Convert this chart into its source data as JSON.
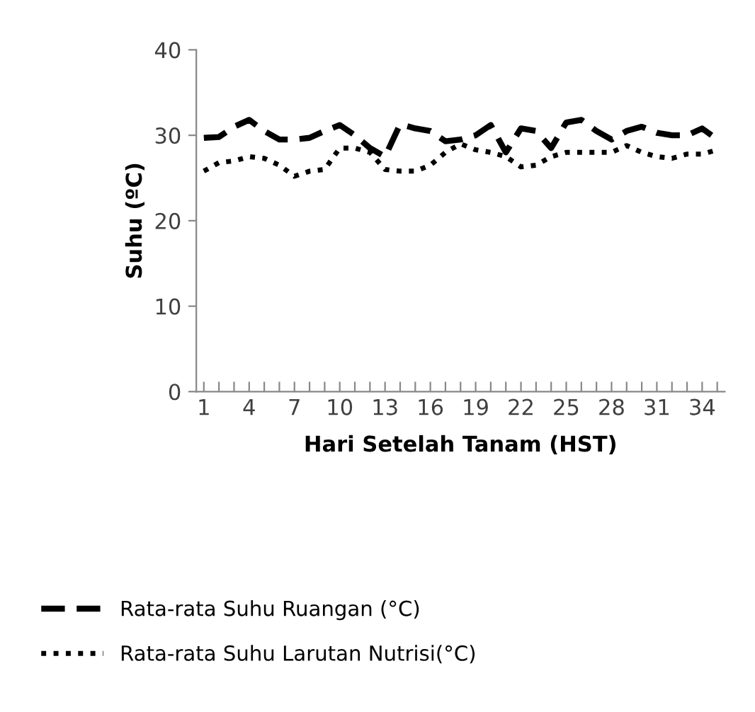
{
  "chart_data": {
    "type": "line",
    "xlabel": "Hari Setelah Tanam (HST)",
    "ylabel": "Suhu (ºC)",
    "categories": [
      "1",
      null,
      null,
      "4",
      null,
      null,
      "7",
      null,
      null,
      "10",
      null,
      null,
      "13",
      null,
      null,
      "16",
      null,
      null,
      "19",
      null,
      null,
      "22",
      null,
      null,
      "25",
      null,
      null,
      "28",
      null,
      null,
      "31",
      null,
      null,
      "34",
      null
    ],
    "series": [
      {
        "name": "Rata-rata Suhu Ruangan (°C)",
        "color": "#000000",
        "line_style": "dashed",
        "values": [
          29.7,
          29.8,
          31,
          31.8,
          30.5,
          29.5,
          29.5,
          29.7,
          30.5,
          31.2,
          30,
          28.5,
          27.5,
          31.3,
          30.8,
          30.5,
          29.3,
          29.5,
          30,
          31.2,
          28,
          30.8,
          30.5,
          28.5,
          31.5,
          31.8,
          30.5,
          29.5,
          30.5,
          31,
          30.3,
          30,
          30,
          30.8,
          29.5
        ]
      },
      {
        "name": "Rata-rata Suhu Larutan Nutrisi(°C)",
        "color": "#000000",
        "line_style": "dotted",
        "values": [
          25.8,
          26.8,
          27,
          27.5,
          27.3,
          26.5,
          25.2,
          25.8,
          26,
          28.5,
          28.5,
          28,
          26,
          25.8,
          25.8,
          26.5,
          28,
          29,
          28.3,
          28,
          27.5,
          26.3,
          26.5,
          27.5,
          28,
          28,
          28,
          28,
          28.8,
          28,
          27.5,
          27.3,
          27.8,
          27.8,
          28.3
        ]
      }
    ],
    "ylim": [
      0,
      40
    ],
    "yticks": [
      0,
      10,
      20,
      30,
      40
    ],
    "grid": false,
    "legend": "bottom"
  }
}
